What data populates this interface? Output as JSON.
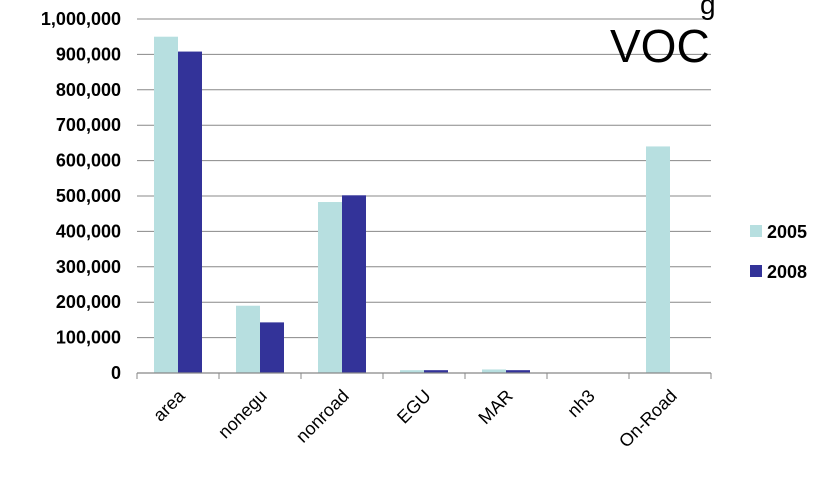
{
  "partial_title": "g",
  "chart_data": {
    "type": "bar",
    "title": "VOC",
    "categories": [
      "area",
      "nonegu",
      "nonroad",
      "EGU",
      "MAR",
      "nh3",
      "On-Road"
    ],
    "series": [
      {
        "name": "2005",
        "color": "#b7dfe0",
        "values": [
          950000,
          190000,
          483000,
          8000,
          10000,
          0,
          640000
        ]
      },
      {
        "name": "2008",
        "color": "#333399",
        "values": [
          908000,
          143000,
          502000,
          8000,
          8000,
          0,
          0
        ]
      }
    ],
    "ylim": [
      0,
      1000000
    ],
    "yticks": [
      "0",
      "100,000",
      "200,000",
      "300,000",
      "400,000",
      "500,000",
      "600,000",
      "700,000",
      "800,000",
      "900,000",
      "1,000,000"
    ],
    "grid": true,
    "legend": "right"
  }
}
